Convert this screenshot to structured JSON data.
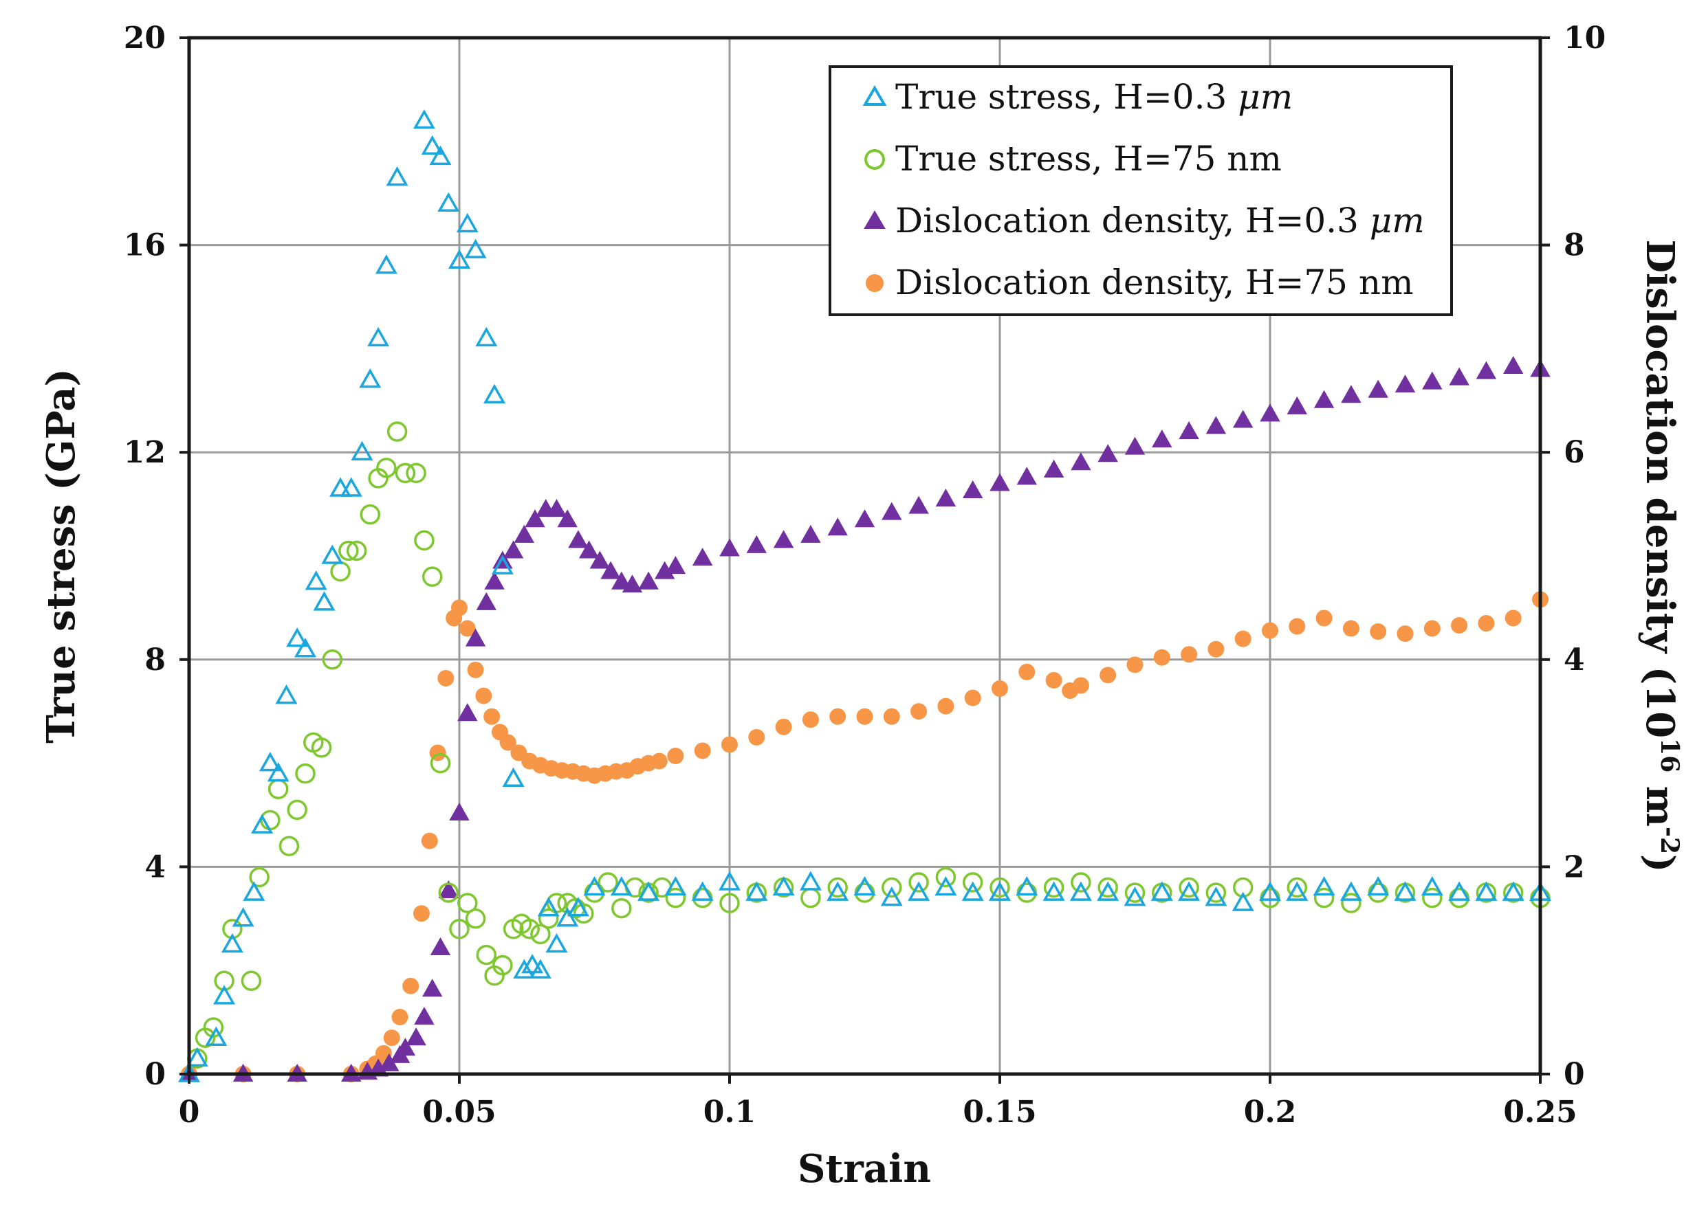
{
  "chart_data": {
    "type": "scatter",
    "xlabel": "Strain",
    "ylabel_left": "True stress (GPa)",
    "ylabel_right_base": "Dislocation density (10",
    "ylabel_right_sup1": "16",
    "ylabel_right_mid": " m",
    "ylabel_right_sup2": "-2",
    "ylabel_right_close": ")",
    "xlim": [
      0,
      0.25
    ],
    "ylim_left": [
      0,
      20
    ],
    "ylim_right": [
      0,
      10
    ],
    "x_ticks": [
      "0",
      "0.05",
      "0.1",
      "0.15",
      "0.2",
      "0.25"
    ],
    "y_left_ticks": [
      "0",
      "4",
      "8",
      "12",
      "16",
      "20"
    ],
    "y_right_ticks": [
      "0",
      "2",
      "4",
      "6",
      "8",
      "10"
    ],
    "grid": true,
    "legend_position": "top-right",
    "colors": {
      "stress_03um": "#1aa7e0",
      "stress_75nm": "#7fc72e",
      "disloc_03um": "#7030a0",
      "disloc_75nm": "#f79646"
    },
    "series": [
      {
        "name": "True stress, H=0.3 μm",
        "legend_label": "True stress, H=0.3 ",
        "legend_unit": "μm",
        "axis": "left",
        "marker": "triangle-open",
        "color_key": "stress_03um",
        "x": [
          0.0,
          0.0015,
          0.005,
          0.0065,
          0.008,
          0.01,
          0.012,
          0.0135,
          0.015,
          0.0165,
          0.018,
          0.02,
          0.0215,
          0.0235,
          0.025,
          0.0265,
          0.028,
          0.03,
          0.032,
          0.0335,
          0.035,
          0.0365,
          0.0385,
          0.0435,
          0.045,
          0.0465,
          0.048,
          0.05,
          0.0515,
          0.053,
          0.055,
          0.0565,
          0.058,
          0.06,
          0.062,
          0.0635,
          0.065,
          0.0665,
          0.068,
          0.07,
          0.072,
          0.075,
          0.08,
          0.085,
          0.09,
          0.095,
          0.1,
          0.105,
          0.11,
          0.115,
          0.12,
          0.125,
          0.13,
          0.135,
          0.14,
          0.145,
          0.15,
          0.155,
          0.16,
          0.165,
          0.17,
          0.175,
          0.18,
          0.185,
          0.19,
          0.195,
          0.2,
          0.205,
          0.21,
          0.215,
          0.22,
          0.225,
          0.23,
          0.235,
          0.24,
          0.245,
          0.25
        ],
        "y": [
          0.0,
          0.3,
          0.7,
          1.5,
          2.5,
          3.0,
          3.5,
          4.8,
          6.0,
          5.8,
          7.3,
          8.4,
          8.2,
          9.5,
          9.1,
          10.0,
          11.3,
          11.3,
          12.0,
          13.4,
          14.2,
          15.6,
          17.3,
          18.4,
          17.9,
          17.7,
          16.8,
          15.7,
          16.4,
          15.9,
          14.2,
          13.1,
          9.8,
          5.7,
          2.0,
          2.1,
          2.0,
          3.2,
          2.5,
          3.0,
          3.2,
          3.6,
          3.6,
          3.5,
          3.6,
          3.5,
          3.7,
          3.5,
          3.6,
          3.7,
          3.5,
          3.6,
          3.4,
          3.5,
          3.6,
          3.5,
          3.5,
          3.6,
          3.5,
          3.5,
          3.5,
          3.4,
          3.5,
          3.5,
          3.4,
          3.3,
          3.5,
          3.5,
          3.6,
          3.5,
          3.6,
          3.5,
          3.6,
          3.5,
          3.5,
          3.5,
          3.5
        ]
      },
      {
        "name": "True stress, H=75 nm",
        "legend_label": "True stress, H=75 nm",
        "axis": "left",
        "marker": "circle-open",
        "color_key": "stress_75nm",
        "x": [
          0.0015,
          0.003,
          0.0045,
          0.0065,
          0.008,
          0.0115,
          0.013,
          0.015,
          0.0165,
          0.0185,
          0.02,
          0.0215,
          0.023,
          0.0245,
          0.0265,
          0.028,
          0.0295,
          0.031,
          0.0335,
          0.035,
          0.0365,
          0.0385,
          0.04,
          0.042,
          0.0435,
          0.045,
          0.0465,
          0.048,
          0.05,
          0.0515,
          0.053,
          0.055,
          0.0565,
          0.058,
          0.06,
          0.0615,
          0.063,
          0.065,
          0.0665,
          0.068,
          0.07,
          0.0715,
          0.073,
          0.075,
          0.0775,
          0.08,
          0.0825,
          0.085,
          0.0875,
          0.09,
          0.095,
          0.1,
          0.105,
          0.11,
          0.115,
          0.12,
          0.125,
          0.13,
          0.135,
          0.14,
          0.145,
          0.15,
          0.155,
          0.16,
          0.165,
          0.17,
          0.175,
          0.18,
          0.185,
          0.19,
          0.195,
          0.2,
          0.205,
          0.21,
          0.215,
          0.22,
          0.225,
          0.23,
          0.235,
          0.24,
          0.245,
          0.25
        ],
        "y": [
          0.3,
          0.7,
          0.9,
          1.8,
          2.8,
          1.8,
          3.8,
          4.9,
          5.5,
          4.4,
          5.1,
          5.8,
          6.4,
          6.3,
          8.0,
          9.7,
          10.1,
          10.1,
          10.8,
          11.5,
          11.7,
          12.4,
          11.6,
          11.6,
          10.3,
          9.6,
          6.0,
          3.5,
          2.8,
          3.3,
          3.0,
          2.3,
          1.9,
          2.1,
          2.8,
          2.9,
          2.8,
          2.7,
          3.0,
          3.3,
          3.3,
          3.2,
          3.1,
          3.5,
          3.7,
          3.2,
          3.6,
          3.5,
          3.6,
          3.4,
          3.4,
          3.3,
          3.5,
          3.6,
          3.4,
          3.6,
          3.5,
          3.6,
          3.7,
          3.8,
          3.7,
          3.6,
          3.5,
          3.6,
          3.7,
          3.6,
          3.5,
          3.5,
          3.6,
          3.5,
          3.6,
          3.4,
          3.6,
          3.4,
          3.3,
          3.5,
          3.5,
          3.4,
          3.4,
          3.5,
          3.5,
          3.4
        ]
      },
      {
        "name": "Dislocation density, H=0.3 μm",
        "legend_label": "Dislocation density, H=0.3 ",
        "legend_unit": "μm",
        "axis": "right",
        "marker": "triangle-filled",
        "color_key": "disloc_03um",
        "x": [
          0.0,
          0.01,
          0.02,
          0.03,
          0.033,
          0.035,
          0.037,
          0.039,
          0.04,
          0.042,
          0.0435,
          0.045,
          0.0465,
          0.048,
          0.05,
          0.0515,
          0.053,
          0.055,
          0.0565,
          0.058,
          0.06,
          0.062,
          0.064,
          0.066,
          0.068,
          0.07,
          0.072,
          0.074,
          0.076,
          0.078,
          0.08,
          0.082,
          0.085,
          0.088,
          0.09,
          0.095,
          0.1,
          0.105,
          0.11,
          0.115,
          0.12,
          0.125,
          0.13,
          0.135,
          0.14,
          0.145,
          0.15,
          0.155,
          0.16,
          0.165,
          0.17,
          0.175,
          0.18,
          0.185,
          0.19,
          0.195,
          0.2,
          0.205,
          0.21,
          0.215,
          0.22,
          0.225,
          0.23,
          0.235,
          0.24,
          0.245,
          0.25
        ],
        "y": [
          0.0,
          0.0,
          0.0,
          0.0,
          0.02,
          0.05,
          0.1,
          0.18,
          0.25,
          0.35,
          0.55,
          0.82,
          1.22,
          1.77,
          2.52,
          3.48,
          4.2,
          4.55,
          4.75,
          4.95,
          5.05,
          5.2,
          5.35,
          5.45,
          5.45,
          5.35,
          5.15,
          5.05,
          4.95,
          4.85,
          4.75,
          4.72,
          4.75,
          4.85,
          4.9,
          4.98,
          5.07,
          5.1,
          5.15,
          5.2,
          5.27,
          5.35,
          5.42,
          5.48,
          5.55,
          5.63,
          5.7,
          5.76,
          5.83,
          5.9,
          5.98,
          6.05,
          6.12,
          6.2,
          6.25,
          6.31,
          6.37,
          6.44,
          6.5,
          6.55,
          6.6,
          6.65,
          6.68,
          6.72,
          6.78,
          6.83,
          6.8
        ]
      },
      {
        "name": "Dislocation density, H=75 nm",
        "legend_label": "Dislocation density, H=75 nm",
        "axis": "right",
        "marker": "circle-filled",
        "color_key": "disloc_75nm",
        "x": [
          0.0,
          0.01,
          0.02,
          0.03,
          0.033,
          0.0345,
          0.036,
          0.0375,
          0.039,
          0.041,
          0.043,
          0.0445,
          0.046,
          0.0475,
          0.049,
          0.05,
          0.0515,
          0.053,
          0.0545,
          0.056,
          0.0575,
          0.059,
          0.061,
          0.063,
          0.065,
          0.067,
          0.069,
          0.071,
          0.073,
          0.075,
          0.077,
          0.079,
          0.081,
          0.083,
          0.085,
          0.087,
          0.09,
          0.095,
          0.1,
          0.105,
          0.11,
          0.115,
          0.12,
          0.125,
          0.13,
          0.135,
          0.14,
          0.145,
          0.15,
          0.155,
          0.16,
          0.163,
          0.165,
          0.17,
          0.175,
          0.18,
          0.185,
          0.19,
          0.195,
          0.2,
          0.205,
          0.21,
          0.215,
          0.22,
          0.225,
          0.23,
          0.235,
          0.24,
          0.245,
          0.25
        ],
        "y": [
          0.0,
          0.0,
          0.0,
          0.0,
          0.05,
          0.1,
          0.2,
          0.35,
          0.55,
          0.85,
          1.55,
          2.25,
          3.1,
          3.82,
          4.4,
          4.5,
          4.3,
          3.9,
          3.65,
          3.45,
          3.3,
          3.2,
          3.1,
          3.02,
          2.98,
          2.95,
          2.93,
          2.92,
          2.9,
          2.88,
          2.9,
          2.92,
          2.93,
          2.97,
          3.0,
          3.02,
          3.07,
          3.12,
          3.18,
          3.25,
          3.35,
          3.42,
          3.45,
          3.45,
          3.45,
          3.5,
          3.55,
          3.63,
          3.72,
          3.88,
          3.8,
          3.7,
          3.75,
          3.85,
          3.95,
          4.02,
          4.05,
          4.1,
          4.2,
          4.28,
          4.32,
          4.4,
          4.3,
          4.27,
          4.25,
          4.3,
          4.33,
          4.35,
          4.4,
          4.58
        ]
      }
    ]
  }
}
